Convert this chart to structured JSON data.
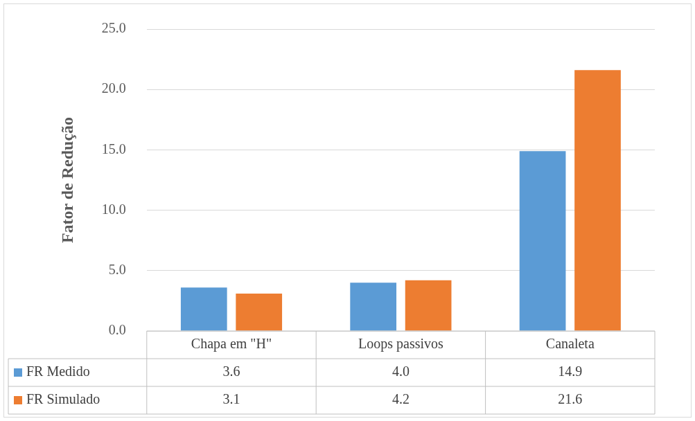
{
  "chart_data": {
    "type": "bar",
    "ylabel": "Fator de Redução",
    "categories": [
      "Chapa em \"H\"",
      "Loops passivos",
      "Canaleta"
    ],
    "series": [
      {
        "name": "FR Medido",
        "color": "#5b9bd5",
        "values": [
          3.6,
          4.0,
          14.9
        ],
        "value_labels": [
          "3.6",
          "4.0",
          "14.9"
        ]
      },
      {
        "name": "FR Simulado",
        "color": "#ed7d31",
        "values": [
          3.1,
          4.2,
          21.6
        ],
        "value_labels": [
          "3.1",
          "4.2",
          "21.6"
        ]
      }
    ],
    "ylim": [
      0,
      25
    ],
    "yticks": [
      {
        "value": 0,
        "label": "0.0"
      },
      {
        "value": 5,
        "label": "5.0"
      },
      {
        "value": 10,
        "label": "10.0"
      },
      {
        "value": 15,
        "label": "15.0"
      },
      {
        "value": 20,
        "label": "20.0"
      },
      {
        "value": 25,
        "label": "25.0"
      }
    ],
    "grid": "y",
    "legend": "bottom"
  }
}
